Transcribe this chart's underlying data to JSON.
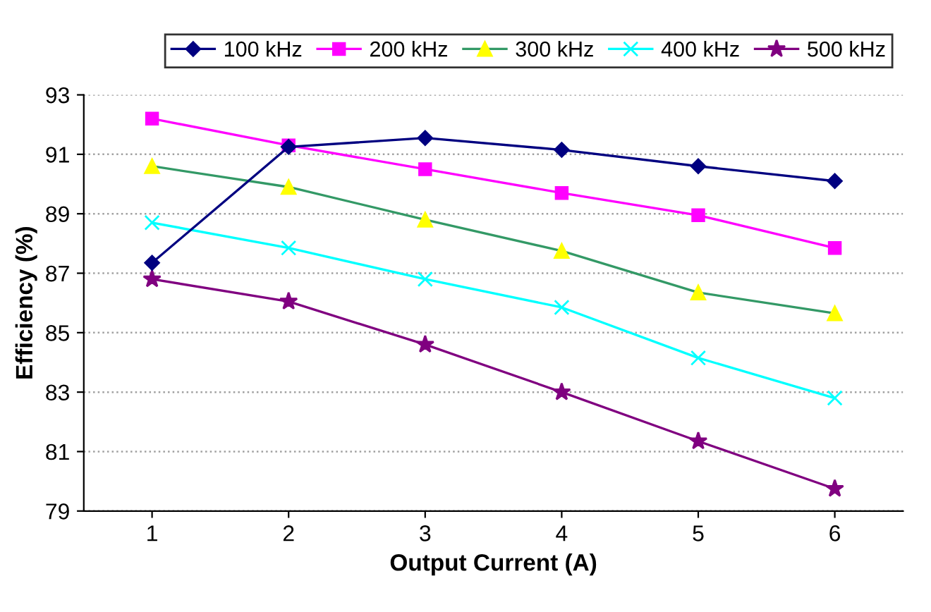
{
  "chart_data": {
    "type": "line",
    "xlabel": "Output Current (A)",
    "ylabel": "Efficiency (%)",
    "categories": [
      "1",
      "2",
      "3",
      "4",
      "5",
      "6"
    ],
    "series": [
      {
        "name": "100 kHz",
        "color": "#000080",
        "marker": "diamond",
        "values": [
          87.35,
          91.25,
          91.55,
          91.15,
          90.6,
          90.1
        ]
      },
      {
        "name": "200 kHz",
        "color": "#ff00ff",
        "marker": "square",
        "values": [
          92.2,
          91.3,
          90.5,
          89.7,
          88.95,
          87.85
        ]
      },
      {
        "name": "300 kHz",
        "color": "#339966",
        "marker": "triangle",
        "values": [
          90.6,
          89.9,
          88.8,
          87.75,
          86.35,
          85.65
        ]
      },
      {
        "name": "400 kHz",
        "color": "#00ffff",
        "marker": "cross",
        "values": [
          88.7,
          87.85,
          86.8,
          85.85,
          84.15,
          82.8
        ]
      },
      {
        "name": "500 kHz",
        "color": "#800080",
        "marker": "star",
        "values": [
          86.8,
          86.05,
          84.6,
          83.0,
          81.35,
          79.75
        ]
      }
    ],
    "ylim": [
      79,
      93
    ],
    "yticks": [
      79,
      81,
      83,
      85,
      87,
      89,
      91,
      93
    ],
    "grid": "y",
    "legend": "top"
  }
}
